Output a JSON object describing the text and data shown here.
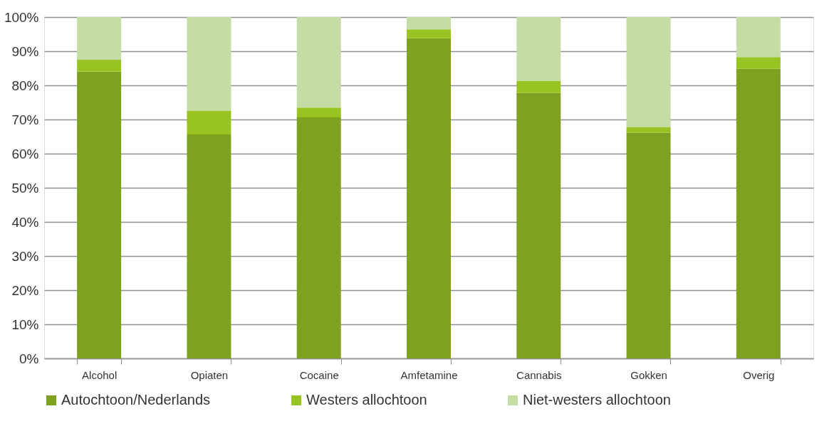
{
  "chart_data": {
    "type": "bar",
    "stacked": true,
    "categories": [
      "Alcohol",
      "Opiaten",
      "Cocaine",
      "Amfetamine",
      "Cannabis",
      "Gokken",
      "Overig"
    ],
    "series": [
      {
        "name": "Autochtoon/Nederlands",
        "color": "#7ea11f",
        "values": [
          84.0,
          65.6,
          70.6,
          93.8,
          77.8,
          66.1,
          84.9
        ]
      },
      {
        "name": "Westers allochtoon",
        "color": "#98c423",
        "values": [
          3.5,
          7.0,
          2.9,
          2.6,
          3.5,
          1.7,
          3.4
        ]
      },
      {
        "name": "Niet-westers allochtoon",
        "color": "#c5dca4",
        "values": [
          12.5,
          27.4,
          26.5,
          3.6,
          18.7,
          32.2,
          11.7
        ]
      }
    ],
    "ylim": [
      0,
      100
    ],
    "yticks": [
      {
        "value": 0,
        "label": "0%"
      },
      {
        "value": 10,
        "label": "10%"
      },
      {
        "value": 20,
        "label": "20%"
      },
      {
        "value": 30,
        "label": "30%"
      },
      {
        "value": 40,
        "label": "40%"
      },
      {
        "value": 50,
        "label": "50%"
      },
      {
        "value": 60,
        "label": "60%"
      },
      {
        "value": 70,
        "label": "70%"
      },
      {
        "value": 80,
        "label": "80%"
      },
      {
        "value": 90,
        "label": "90%"
      },
      {
        "value": 100,
        "label": "100%"
      }
    ],
    "grid": "y",
    "legend": "bottom"
  }
}
